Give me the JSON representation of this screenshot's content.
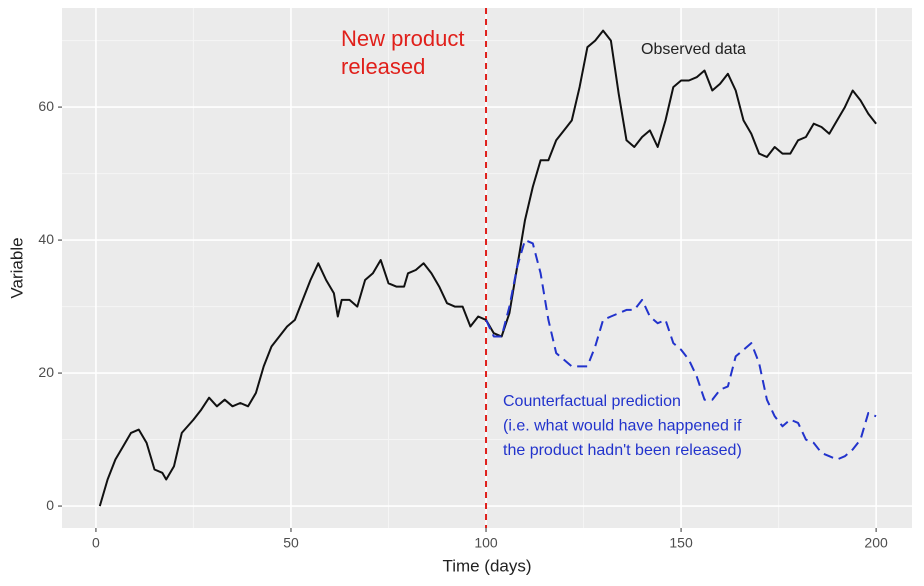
{
  "chart_data": {
    "type": "line",
    "x_label": "Time (days)",
    "y_label": "Variable",
    "x": [
      1,
      3,
      5,
      7,
      9,
      11,
      13,
      15,
      17,
      18,
      20,
      22,
      25,
      27,
      29,
      31,
      33,
      35,
      37,
      39,
      41,
      43,
      45,
      47,
      49,
      51,
      53,
      55,
      57,
      59,
      61,
      62,
      63,
      65,
      67,
      69,
      71,
      73,
      75,
      77,
      79,
      80,
      82,
      84,
      86,
      88,
      90,
      92,
      94,
      96,
      98,
      100,
      102,
      104,
      106,
      108,
      110,
      112,
      114,
      116,
      118,
      120,
      122,
      124,
      126,
      128,
      130,
      132,
      134,
      136,
      138,
      140,
      142,
      144,
      146,
      148,
      150,
      152,
      154,
      156,
      158,
      160,
      162,
      164,
      166,
      168,
      170,
      172,
      174,
      176,
      178,
      180,
      182,
      184,
      186,
      188,
      190,
      192,
      194,
      196,
      198,
      200
    ],
    "series": [
      {
        "color": "#111111",
        "dash": false,
        "values": [
          0,
          4,
          7,
          9,
          11,
          11.5,
          9.5,
          5.5,
          5,
          4,
          6,
          11,
          13,
          14.5,
          16.3,
          15,
          16,
          15,
          15.5,
          15,
          17,
          21,
          24,
          25.5,
          27,
          28,
          31,
          34,
          36.5,
          34,
          32,
          28.5,
          31,
          31,
          30,
          34,
          35,
          37,
          33.5,
          33,
          33,
          35,
          35.5,
          36.5,
          35,
          33,
          30.5,
          30,
          30,
          27,
          28.5,
          28,
          26,
          25.5,
          29,
          36,
          43,
          48,
          52,
          52,
          55,
          56.5,
          58,
          63,
          69,
          70,
          71.5,
          70,
          62,
          55,
          54,
          55.5,
          56.5,
          54,
          58,
          63,
          64,
          64,
          64.5,
          65.5,
          62.5,
          63.5,
          65,
          62.5,
          58,
          56,
          53,
          52.5,
          54,
          53,
          53,
          55,
          55.5,
          57.5,
          57,
          56,
          58,
          60,
          62.5,
          61,
          59,
          57.5
        ]
      },
      {
        "color": "#2233cc",
        "dash": true,
        "values": [
          null,
          null,
          null,
          null,
          null,
          null,
          null,
          null,
          null,
          null,
          null,
          null,
          null,
          null,
          null,
          null,
          null,
          null,
          null,
          null,
          null,
          null,
          null,
          null,
          null,
          null,
          null,
          null,
          null,
          null,
          null,
          null,
          null,
          null,
          null,
          null,
          null,
          null,
          null,
          null,
          null,
          null,
          null,
          null,
          null,
          null,
          null,
          null,
          null,
          null,
          null,
          28,
          25.5,
          25.5,
          30,
          36,
          40,
          39.5,
          35,
          28,
          23,
          22,
          21,
          21,
          21,
          24,
          28,
          28.5,
          29,
          29.5,
          29.5,
          31,
          28.5,
          27.5,
          28,
          24.5,
          23.5,
          22,
          19.5,
          16,
          16,
          17.5,
          18,
          22.5,
          23.5,
          24.5,
          21.5,
          16,
          13.5,
          12,
          13,
          12.5,
          10,
          9.5,
          8,
          7.5,
          7,
          7.5,
          8.5,
          10,
          14,
          13.5
        ]
      }
    ],
    "vline": 100,
    "vline_color": "#e0201b",
    "annotations": [
      {
        "lines": [
          "New product",
          "released"
        ],
        "color": "#e0201b"
      },
      {
        "lines": [
          "Observed data"
        ],
        "color": "#222222"
      },
      {
        "lines": [
          "Counterfactual prediction",
          "(i.e. what would have happened if",
          "the product hadn't been released)"
        ],
        "color": "#2233cc"
      }
    ],
    "xlim": [
      -8.7,
      209.2
    ],
    "ylim": [
      -3.3,
      74.9
    ],
    "xticks": [
      0,
      50,
      100,
      150,
      200
    ],
    "yticks": [
      0,
      20,
      40,
      60
    ],
    "grid": true
  }
}
